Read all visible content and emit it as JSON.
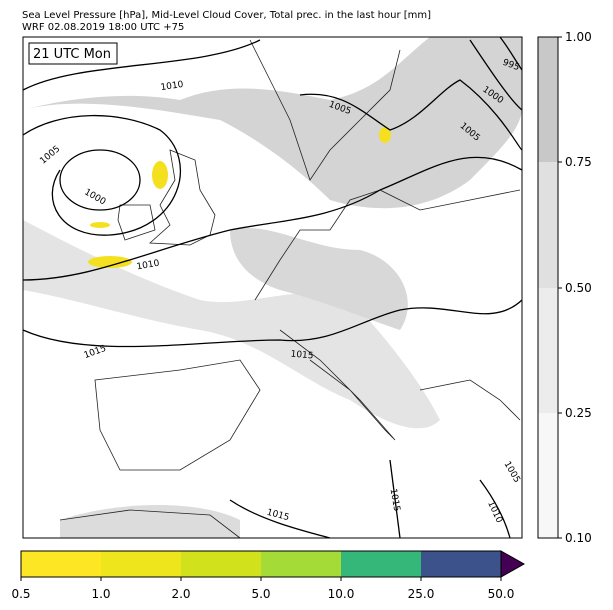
{
  "header": {
    "line1": "Sea Level Pressure [hPa], Mid-Level Cloud Cover, Total prec. in the last hour [mm]",
    "line2": "WRF 02.08.2019 18:00 UTC +75"
  },
  "map": {
    "time_label": "21 UTC Mon",
    "contour_labels": [
      "1010",
      "1005",
      "1000",
      "1010",
      "1015",
      "1015",
      "1005",
      "1000",
      "995",
      "1005",
      "1015",
      "1015",
      "1010",
      "1005"
    ]
  },
  "cloud_colorbar": {
    "ticks": [
      "0.10",
      "0.25",
      "0.50",
      "0.75",
      "1.00"
    ]
  },
  "precip_colorbar": {
    "ticks": [
      "0.5",
      "1.0",
      "2.0",
      "5.0",
      "10.0",
      "25.0",
      "50.0"
    ]
  }
}
